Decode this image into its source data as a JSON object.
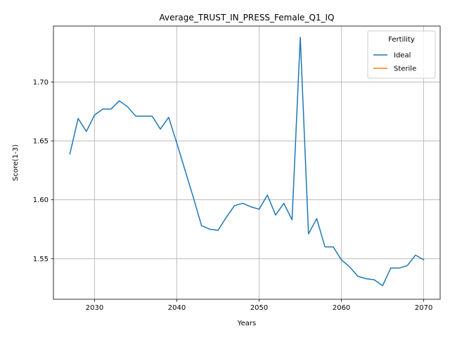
{
  "chart_data": {
    "type": "line",
    "title": "Average_TRUST_IN_PRESS_Female_Q1_IQ",
    "xlabel": "Years",
    "ylabel": "Score(1-3)",
    "xlim": [
      2025,
      2072
    ],
    "ylim": [
      1.5155,
      1.7475
    ],
    "xticks": [
      2030,
      2040,
      2050,
      2060,
      2070
    ],
    "yticks": [
      1.55,
      1.6,
      1.65,
      1.7
    ],
    "ytick_labels": [
      "1.55",
      "1.60",
      "1.65",
      "1.70"
    ],
    "grid": true,
    "legend": {
      "title": "Fertility",
      "placement": "top-right",
      "entries": [
        "Ideal",
        "Sterile"
      ]
    },
    "series": [
      {
        "name": "Ideal",
        "color": "#1f77b4",
        "x": [
          2027,
          2028,
          2029,
          2030,
          2031,
          2032,
          2033,
          2034,
          2035,
          2036,
          2037,
          2038,
          2039,
          2040,
          2041,
          2042,
          2043,
          2044,
          2045,
          2046,
          2047,
          2048,
          2049,
          2050,
          2051,
          2052,
          2053,
          2054,
          2055,
          2056,
          2057,
          2058,
          2059,
          2060,
          2061,
          2062,
          2063,
          2064,
          2065,
          2066,
          2067,
          2068,
          2069,
          2070
        ],
        "y": [
          1.639,
          1.669,
          1.658,
          1.672,
          1.677,
          1.677,
          1.684,
          1.679,
          1.671,
          1.671,
          1.671,
          1.66,
          1.67,
          1.648,
          1.625,
          1.602,
          1.578,
          1.575,
          1.574,
          1.585,
          1.595,
          1.597,
          1.594,
          1.592,
          1.604,
          1.587,
          1.597,
          1.583,
          1.738,
          1.571,
          1.584,
          1.56,
          1.56,
          1.549,
          1.543,
          1.535,
          1.533,
          1.532,
          1.527,
          1.542,
          1.542,
          1.544,
          1.553,
          1.549
        ]
      },
      {
        "name": "Sterile",
        "color": "#ff7f0e",
        "x": [],
        "y": []
      }
    ]
  }
}
